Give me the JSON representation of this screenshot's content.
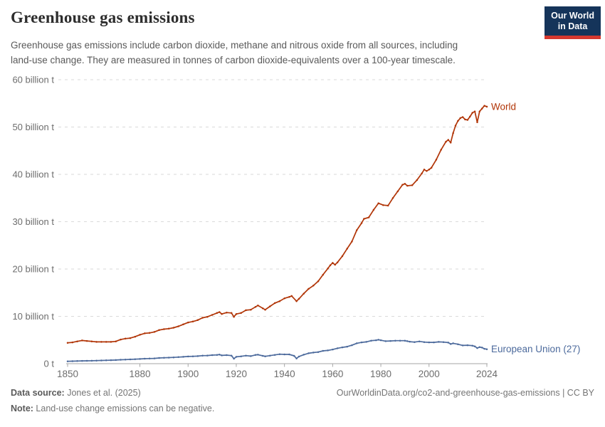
{
  "header": {
    "title": "Greenhouse gas emissions",
    "subtitle_lines": [
      "Greenhouse gas emissions include carbon dioxide, methane and nitrous oxide from all sources, including",
      "land-use change. They are measured in tonnes of carbon dioxide-equivalents over a 100-year timescale."
    ],
    "logo": {
      "line1": "Our World",
      "line2": "in Data",
      "bg_color": "#15345a",
      "accent_color": "#d5382f"
    }
  },
  "chart_data": {
    "type": "line",
    "title": "Greenhouse gas emissions",
    "unit": "billion t",
    "xlim": [
      1850,
      2024
    ],
    "ylim": [
      0,
      60
    ],
    "grid": "horizontal-dashed",
    "legend_position": "line-end-labels",
    "xticks": [
      1850,
      1880,
      1900,
      1920,
      1940,
      1960,
      1980,
      2000,
      2024
    ],
    "yticks": [
      {
        "value": 0,
        "label": "0 t"
      },
      {
        "value": 10,
        "label": "10 billion t"
      },
      {
        "value": 20,
        "label": "20 billion t"
      },
      {
        "value": 30,
        "label": "30 billion t"
      },
      {
        "value": 40,
        "label": "40 billion t"
      },
      {
        "value": 50,
        "label": "50 billion t"
      },
      {
        "value": 60,
        "label": "60 billion t"
      }
    ],
    "series": [
      {
        "name": "World",
        "color": "#B13507",
        "points": [
          [
            1850,
            4.4
          ],
          [
            1852,
            4.5
          ],
          [
            1854,
            4.7
          ],
          [
            1856,
            4.9
          ],
          [
            1858,
            4.8
          ],
          [
            1860,
            4.7
          ],
          [
            1862,
            4.6
          ],
          [
            1864,
            4.6
          ],
          [
            1866,
            4.6
          ],
          [
            1868,
            4.6
          ],
          [
            1870,
            4.7
          ],
          [
            1872,
            5.1
          ],
          [
            1874,
            5.3
          ],
          [
            1876,
            5.4
          ],
          [
            1878,
            5.7
          ],
          [
            1880,
            6.1
          ],
          [
            1882,
            6.4
          ],
          [
            1884,
            6.5
          ],
          [
            1886,
            6.7
          ],
          [
            1888,
            7.1
          ],
          [
            1890,
            7.3
          ],
          [
            1892,
            7.4
          ],
          [
            1894,
            7.6
          ],
          [
            1896,
            7.9
          ],
          [
            1898,
            8.3
          ],
          [
            1900,
            8.7
          ],
          [
            1902,
            8.9
          ],
          [
            1904,
            9.2
          ],
          [
            1906,
            9.7
          ],
          [
            1908,
            9.9
          ],
          [
            1910,
            10.3
          ],
          [
            1912,
            10.7
          ],
          [
            1913,
            10.9
          ],
          [
            1914,
            10.5
          ],
          [
            1916,
            10.8
          ],
          [
            1918,
            10.7
          ],
          [
            1919,
            9.9
          ],
          [
            1920,
            10.5
          ],
          [
            1922,
            10.7
          ],
          [
            1924,
            11.3
          ],
          [
            1926,
            11.4
          ],
          [
            1928,
            12.0
          ],
          [
            1929,
            12.3
          ],
          [
            1931,
            11.7
          ],
          [
            1932,
            11.4
          ],
          [
            1934,
            12.1
          ],
          [
            1936,
            12.8
          ],
          [
            1938,
            13.2
          ],
          [
            1940,
            13.8
          ],
          [
            1942,
            14.1
          ],
          [
            1943,
            14.3
          ],
          [
            1945,
            13.2
          ],
          [
            1946,
            13.7
          ],
          [
            1948,
            14.8
          ],
          [
            1950,
            15.8
          ],
          [
            1952,
            16.5
          ],
          [
            1954,
            17.4
          ],
          [
            1956,
            18.8
          ],
          [
            1958,
            20.1
          ],
          [
            1959,
            20.8
          ],
          [
            1960,
            21.3
          ],
          [
            1961,
            20.9
          ],
          [
            1962,
            21.4
          ],
          [
            1964,
            22.7
          ],
          [
            1966,
            24.3
          ],
          [
            1968,
            25.8
          ],
          [
            1970,
            28.2
          ],
          [
            1972,
            29.7
          ],
          [
            1973,
            30.6
          ],
          [
            1975,
            30.9
          ],
          [
            1977,
            32.5
          ],
          [
            1979,
            33.9
          ],
          [
            1981,
            33.5
          ],
          [
            1983,
            33.4
          ],
          [
            1985,
            35.0
          ],
          [
            1987,
            36.4
          ],
          [
            1989,
            37.8
          ],
          [
            1990,
            38.0
          ],
          [
            1991,
            37.6
          ],
          [
            1993,
            37.7
          ],
          [
            1995,
            38.8
          ],
          [
            1997,
            40.2
          ],
          [
            1998,
            41.0
          ],
          [
            1999,
            40.7
          ],
          [
            2000,
            41.0
          ],
          [
            2001,
            41.4
          ],
          [
            2003,
            43.1
          ],
          [
            2005,
            45.2
          ],
          [
            2007,
            46.9
          ],
          [
            2008,
            47.3
          ],
          [
            2009,
            46.7
          ],
          [
            2010,
            48.7
          ],
          [
            2011,
            50.3
          ],
          [
            2012,
            51.3
          ],
          [
            2013,
            51.9
          ],
          [
            2014,
            52.1
          ],
          [
            2015,
            51.6
          ],
          [
            2016,
            51.5
          ],
          [
            2017,
            52.2
          ],
          [
            2018,
            53.0
          ],
          [
            2019,
            53.3
          ],
          [
            2020,
            51.0
          ],
          [
            2021,
            53.3
          ],
          [
            2022,
            53.9
          ],
          [
            2023,
            54.5
          ],
          [
            2024,
            54.3
          ]
        ]
      },
      {
        "name": "European Union (27)",
        "color": "#4C6A9C",
        "points": [
          [
            1850,
            0.5
          ],
          [
            1852,
            0.52
          ],
          [
            1854,
            0.55
          ],
          [
            1856,
            0.58
          ],
          [
            1858,
            0.6
          ],
          [
            1860,
            0.62
          ],
          [
            1862,
            0.64
          ],
          [
            1864,
            0.67
          ],
          [
            1866,
            0.7
          ],
          [
            1868,
            0.73
          ],
          [
            1870,
            0.76
          ],
          [
            1872,
            0.82
          ],
          [
            1874,
            0.86
          ],
          [
            1876,
            0.9
          ],
          [
            1878,
            0.95
          ],
          [
            1880,
            1.0
          ],
          [
            1882,
            1.05
          ],
          [
            1884,
            1.08
          ],
          [
            1886,
            1.12
          ],
          [
            1888,
            1.2
          ],
          [
            1890,
            1.25
          ],
          [
            1892,
            1.28
          ],
          [
            1894,
            1.32
          ],
          [
            1896,
            1.38
          ],
          [
            1898,
            1.45
          ],
          [
            1900,
            1.52
          ],
          [
            1902,
            1.55
          ],
          [
            1904,
            1.6
          ],
          [
            1906,
            1.7
          ],
          [
            1908,
            1.72
          ],
          [
            1910,
            1.8
          ],
          [
            1912,
            1.85
          ],
          [
            1913,
            1.92
          ],
          [
            1914,
            1.75
          ],
          [
            1916,
            1.8
          ],
          [
            1918,
            1.7
          ],
          [
            1919,
            1.05
          ],
          [
            1920,
            1.45
          ],
          [
            1922,
            1.55
          ],
          [
            1924,
            1.7
          ],
          [
            1926,
            1.6
          ],
          [
            1928,
            1.85
          ],
          [
            1929,
            1.9
          ],
          [
            1931,
            1.65
          ],
          [
            1932,
            1.55
          ],
          [
            1934,
            1.7
          ],
          [
            1936,
            1.85
          ],
          [
            1938,
            2.0
          ],
          [
            1940,
            1.95
          ],
          [
            1942,
            1.95
          ],
          [
            1944,
            1.65
          ],
          [
            1945,
            1.1
          ],
          [
            1946,
            1.5
          ],
          [
            1948,
            1.9
          ],
          [
            1950,
            2.2
          ],
          [
            1952,
            2.35
          ],
          [
            1954,
            2.45
          ],
          [
            1956,
            2.7
          ],
          [
            1958,
            2.8
          ],
          [
            1960,
            3.0
          ],
          [
            1962,
            3.25
          ],
          [
            1964,
            3.45
          ],
          [
            1966,
            3.6
          ],
          [
            1968,
            3.9
          ],
          [
            1970,
            4.3
          ],
          [
            1972,
            4.5
          ],
          [
            1974,
            4.6
          ],
          [
            1976,
            4.85
          ],
          [
            1978,
            4.95
          ],
          [
            1979,
            5.05
          ],
          [
            1980,
            4.95
          ],
          [
            1982,
            4.75
          ],
          [
            1984,
            4.8
          ],
          [
            1986,
            4.85
          ],
          [
            1988,
            4.85
          ],
          [
            1990,
            4.85
          ],
          [
            1991,
            4.75
          ],
          [
            1992,
            4.65
          ],
          [
            1994,
            4.55
          ],
          [
            1996,
            4.7
          ],
          [
            1998,
            4.55
          ],
          [
            2000,
            4.5
          ],
          [
            2002,
            4.5
          ],
          [
            2004,
            4.6
          ],
          [
            2006,
            4.55
          ],
          [
            2008,
            4.45
          ],
          [
            2009,
            4.15
          ],
          [
            2010,
            4.3
          ],
          [
            2012,
            4.1
          ],
          [
            2014,
            3.85
          ],
          [
            2016,
            3.9
          ],
          [
            2018,
            3.8
          ],
          [
            2019,
            3.65
          ],
          [
            2020,
            3.3
          ],
          [
            2021,
            3.5
          ],
          [
            2022,
            3.4
          ],
          [
            2023,
            3.15
          ],
          [
            2024,
            3.05
          ]
        ]
      }
    ]
  },
  "footer": {
    "source_label": "Data source:",
    "source_value": " Jones et al. (2025)",
    "note_label": "Note:",
    "note_value": " Land-use change emissions can be negative.",
    "link": "OurWorldinData.org/co2-and-greenhouse-gas-emissions | CC BY"
  }
}
